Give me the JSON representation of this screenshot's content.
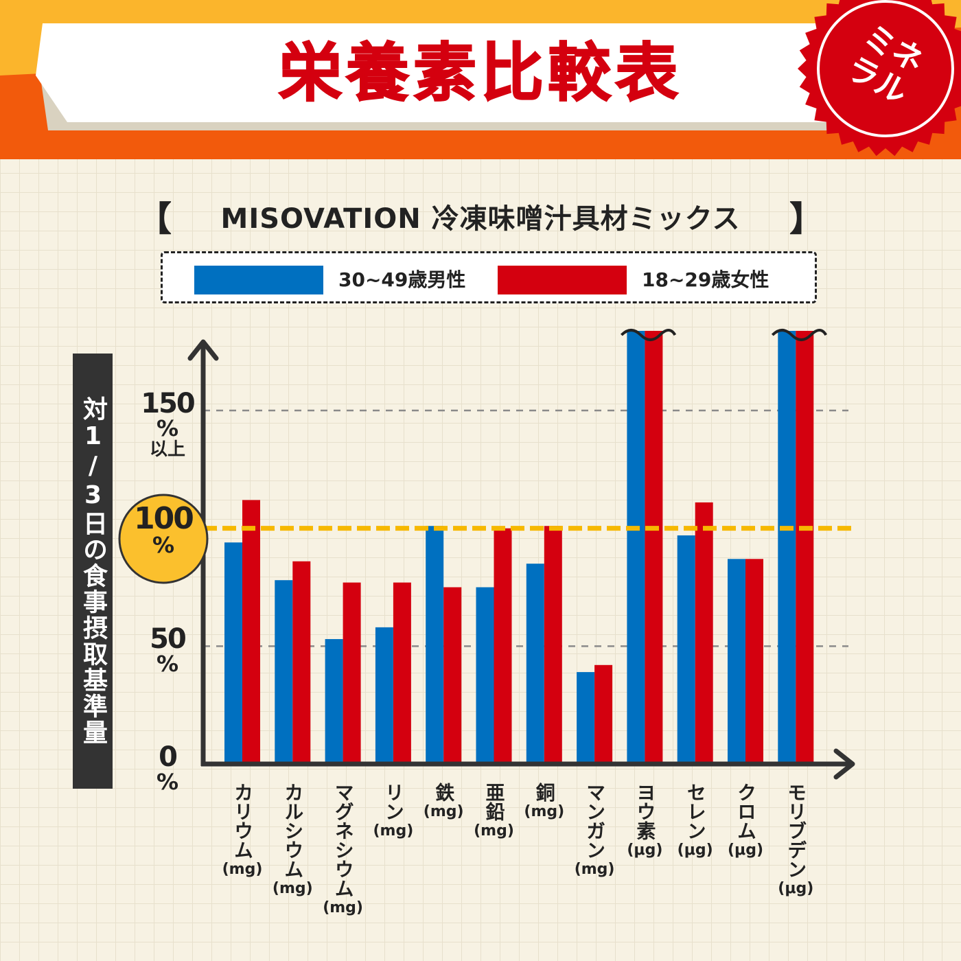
{
  "header": {
    "title": "栄養素比較表",
    "badge": "ミネラル",
    "colors": {
      "title": "#d4000f",
      "band_top": "#fbb52c",
      "band_bottom": "#f25a0c",
      "badge": "#d4000f"
    }
  },
  "subtitle": {
    "open_bracket": "【",
    "text": "MISOVATION 冷凍味噌汁具材ミックス",
    "close_bracket": "】"
  },
  "legend": [
    {
      "label": "30~49歳男性",
      "color": "#0070c0"
    },
    {
      "label": "18~29歳女性",
      "color": "#d4000f"
    }
  ],
  "y_axis": {
    "label": "対1/3日の食事摂取基準量",
    "ticks": [
      {
        "value": 150,
        "num": "150",
        "unit": "%",
        "extra": "以上"
      },
      {
        "value": 100,
        "num": "100",
        "unit": "%",
        "extra": ""
      },
      {
        "value": 50,
        "num": "50",
        "unit": "%",
        "extra": ""
      },
      {
        "value": 0,
        "num": "0",
        "unit": "%",
        "extra": ""
      }
    ]
  },
  "chart_data": {
    "type": "bar",
    "categories": [
      {
        "name": "カリウム",
        "unit": "(mg)"
      },
      {
        "name": "カルシウム",
        "unit": "(mg)"
      },
      {
        "name": "マグネシウム",
        "unit": "(mg)"
      },
      {
        "name": "リン",
        "unit": "(mg)"
      },
      {
        "name": "鉄",
        "unit": "(mg)"
      },
      {
        "name": "亜鉛",
        "unit": "(mg)"
      },
      {
        "name": "銅",
        "unit": "(mg)"
      },
      {
        "name": "マンガン",
        "unit": "(mg)"
      },
      {
        "name": "ヨウ素",
        "unit": "(μg)"
      },
      {
        "name": "セレン",
        "unit": "(μg)"
      },
      {
        "name": "クロム",
        "unit": "(μg)"
      },
      {
        "name": "モリブデン",
        "unit": "(μg)"
      }
    ],
    "series": [
      {
        "name": "30~49歳男性",
        "color": "#0070c0",
        "values": [
          94,
          78,
          53,
          58,
          101,
          75,
          85,
          39,
          150,
          97,
          87,
          150
        ]
      },
      {
        "name": "18~29歳女性",
        "color": "#d4000f",
        "values": [
          112,
          86,
          77,
          77,
          75,
          100,
          101,
          42,
          150,
          111,
          87,
          150
        ]
      }
    ],
    "ylim": [
      0,
      150
    ],
    "capped_at": 150,
    "reference_line": 100,
    "gridlines": [
      50,
      150
    ]
  }
}
